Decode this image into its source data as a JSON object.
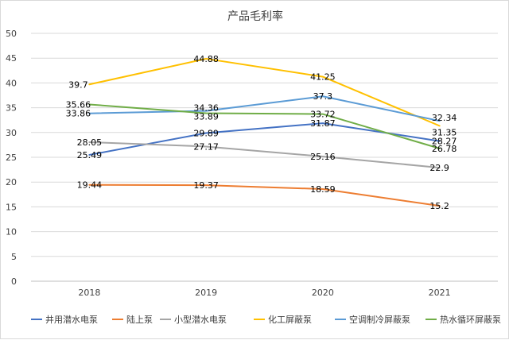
{
  "chart_data": {
    "type": "line",
    "title": "产品毛利率",
    "categories": [
      "2018",
      "2019",
      "2020",
      "2021"
    ],
    "ylim": [
      0,
      50
    ],
    "yticks": [
      0,
      5,
      10,
      15,
      20,
      25,
      30,
      35,
      40,
      45,
      50
    ],
    "grid": true,
    "legend_position": "bottom",
    "series": [
      {
        "name": "井用潜水电泵",
        "color": "#4472C4",
        "values": [
          25.49,
          29.89,
          31.87,
          28.27
        ]
      },
      {
        "name": "陆上泵",
        "color": "#ED7D31",
        "values": [
          19.44,
          19.37,
          18.59,
          15.2
        ]
      },
      {
        "name": "小型潜水电泵",
        "color": "#A5A5A5",
        "values": [
          28.05,
          27.17,
          25.16,
          22.9
        ]
      },
      {
        "name": "化工屏蔽泵",
        "color": "#FFC000",
        "values": [
          39.7,
          44.88,
          41.25,
          31.35
        ]
      },
      {
        "name": "空调制冷屏蔽泵",
        "color": "#5B9BD5",
        "values": [
          33.86,
          34.36,
          37.3,
          32.34
        ]
      },
      {
        "name": "热水循环屏蔽泵",
        "color": "#70AD47",
        "values": [
          35.66,
          33.89,
          33.72,
          26.78
        ]
      }
    ]
  }
}
